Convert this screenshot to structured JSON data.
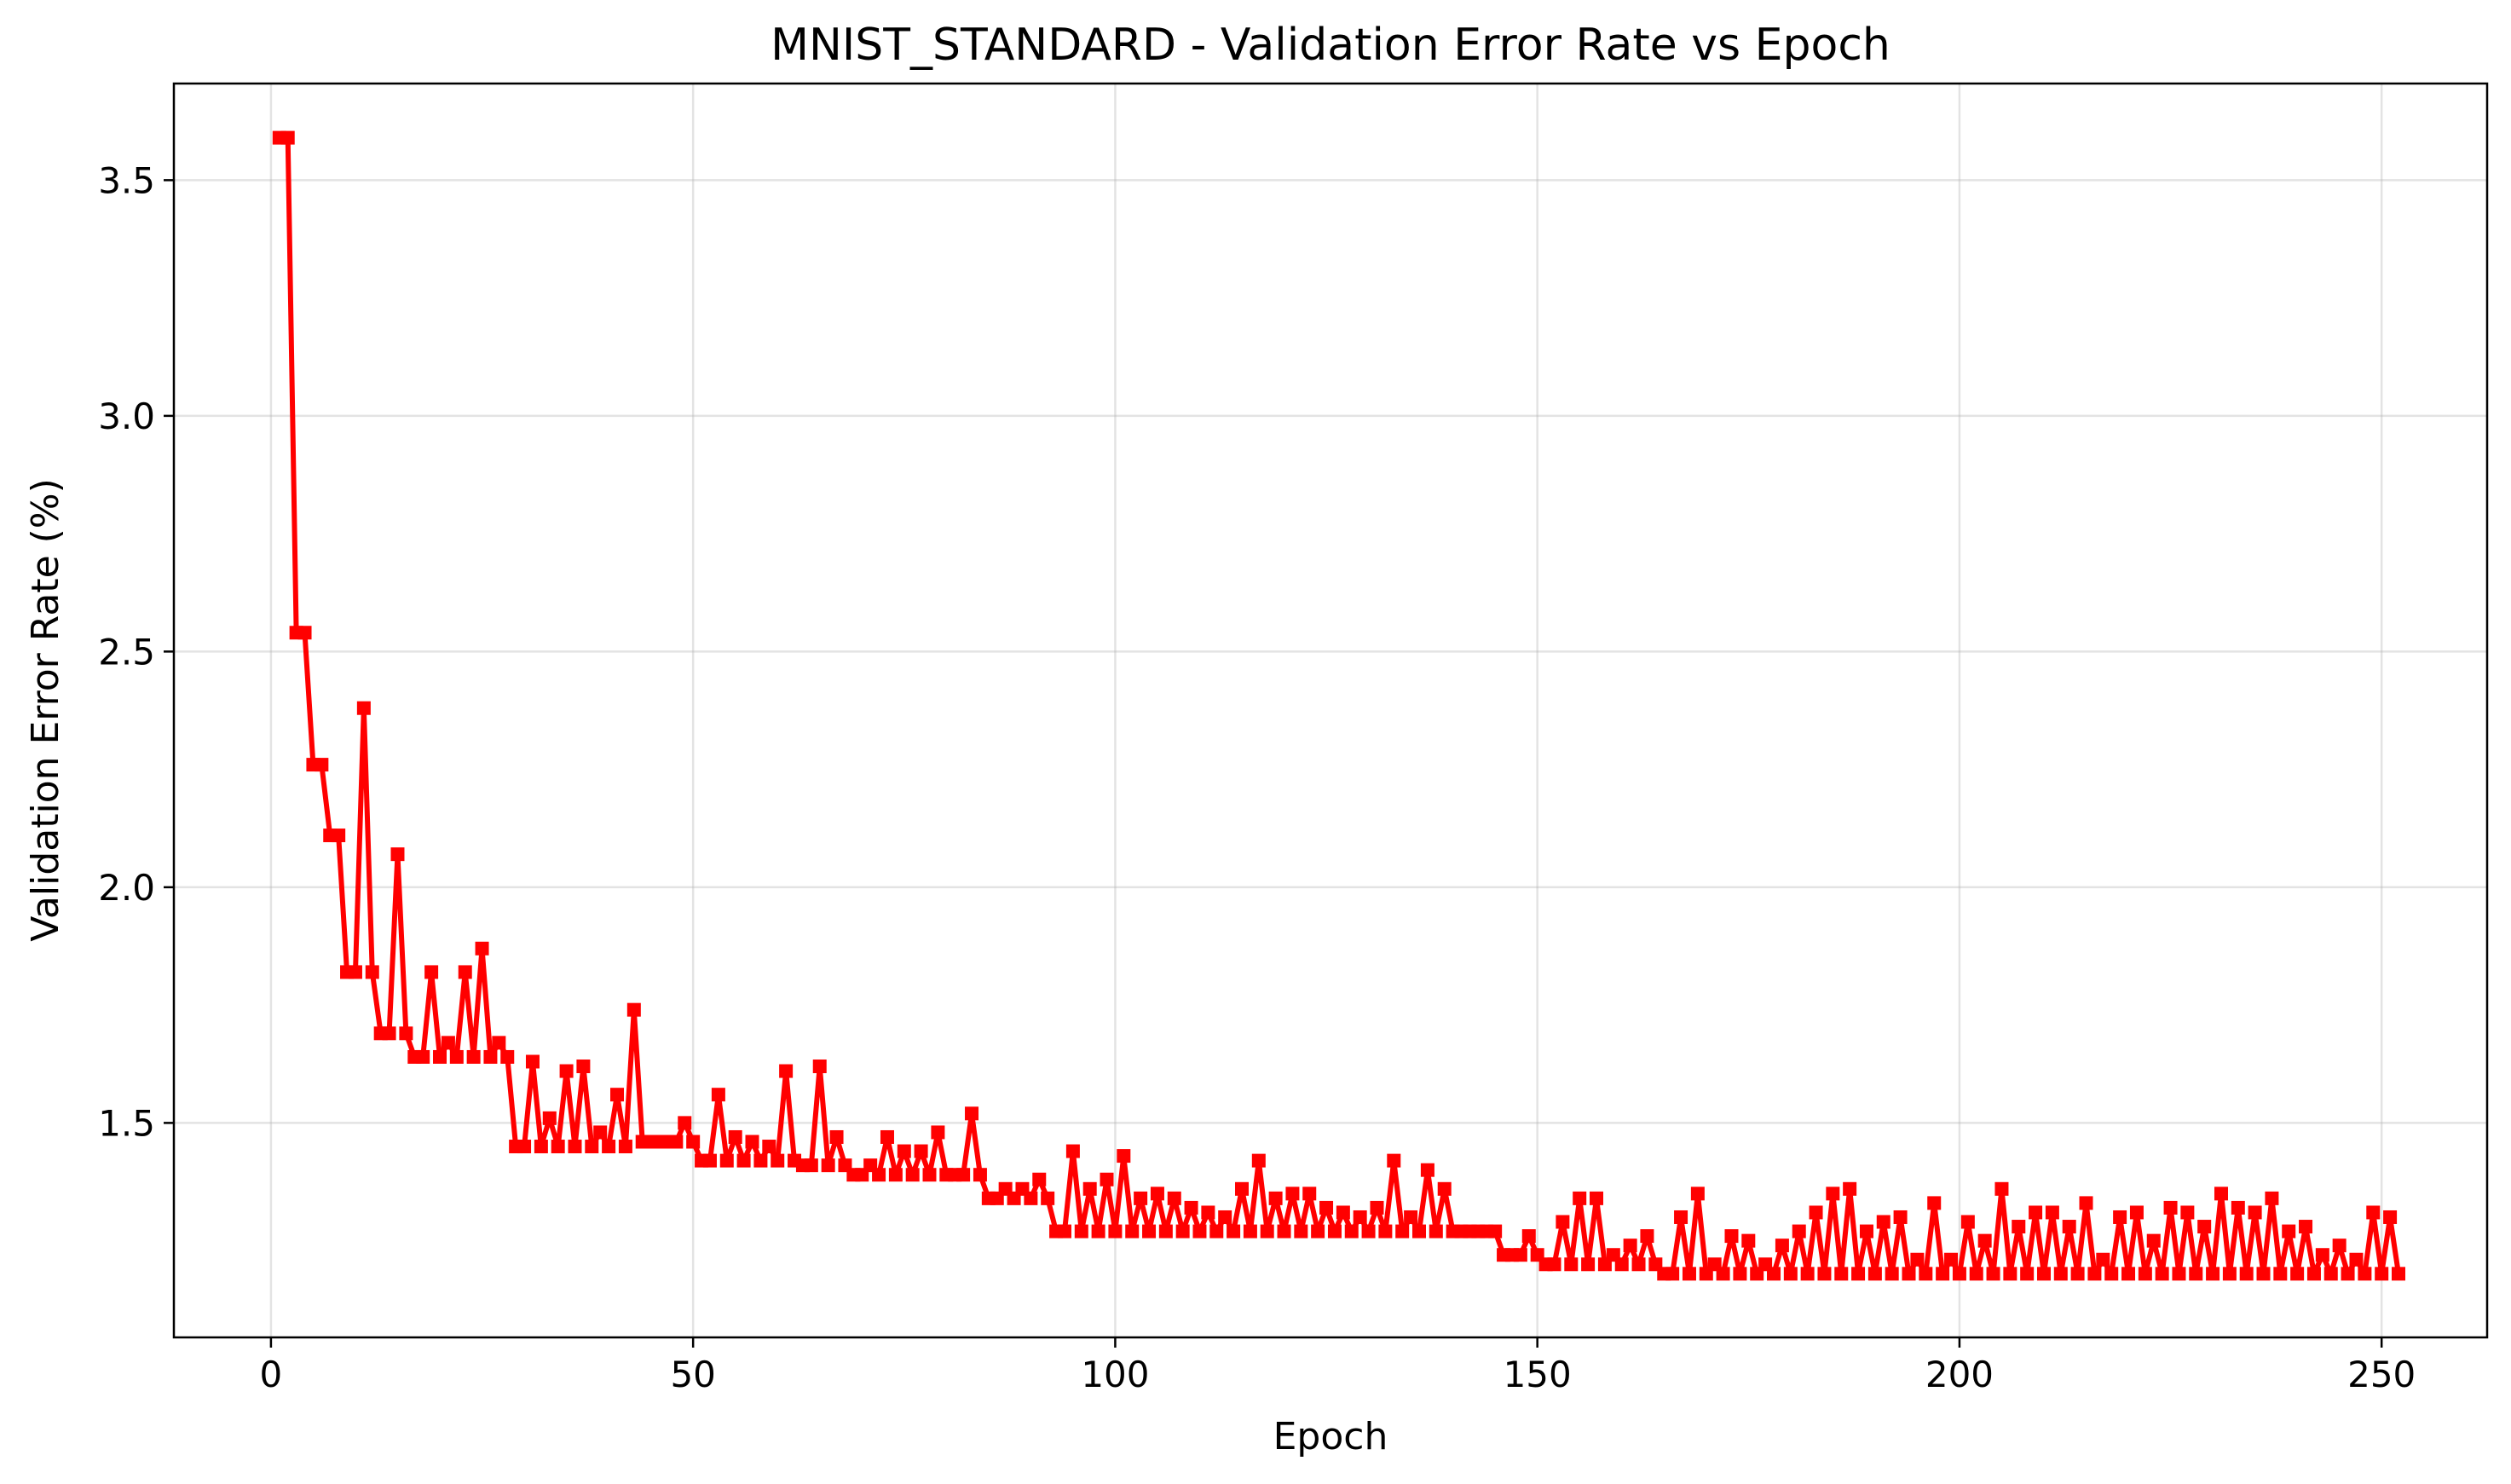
{
  "chart_data": {
    "type": "line",
    "title": "MNIST_STANDARD - Validation Error Rate vs Epoch",
    "xlabel": "Epoch",
    "ylabel": "Validation Error Rate (%)",
    "xlim": [
      -11.5,
      262.5
    ],
    "ylim": [
      1.045,
      3.705
    ],
    "xticks": [
      0,
      50,
      100,
      150,
      200,
      250
    ],
    "yticks": [
      1.5,
      2.0,
      2.5,
      3.0,
      3.5
    ],
    "xtick_labels": [
      "0",
      "50",
      "100",
      "150",
      "200",
      "250"
    ],
    "ytick_labels": [
      "1.5",
      "2.0",
      "2.5",
      "3.0",
      "3.5"
    ],
    "grid": true,
    "series": [
      {
        "color": "#ff0000",
        "marker": "square",
        "x_start": 1,
        "x_step": 1,
        "values": [
          3.59,
          3.59,
          2.54,
          2.54,
          2.26,
          2.26,
          2.11,
          2.11,
          1.82,
          1.82,
          2.38,
          1.82,
          1.69,
          1.69,
          2.07,
          1.69,
          1.64,
          1.64,
          1.82,
          1.64,
          1.67,
          1.64,
          1.82,
          1.64,
          1.87,
          1.64,
          1.67,
          1.64,
          1.45,
          1.45,
          1.63,
          1.45,
          1.51,
          1.45,
          1.61,
          1.45,
          1.62,
          1.45,
          1.48,
          1.45,
          1.56,
          1.45,
          1.74,
          1.46,
          1.46,
          1.46,
          1.46,
          1.46,
          1.5,
          1.46,
          1.42,
          1.42,
          1.56,
          1.42,
          1.47,
          1.42,
          1.46,
          1.42,
          1.45,
          1.42,
          1.61,
          1.42,
          1.41,
          1.41,
          1.62,
          1.41,
          1.47,
          1.41,
          1.39,
          1.39,
          1.41,
          1.39,
          1.47,
          1.39,
          1.44,
          1.39,
          1.44,
          1.39,
          1.48,
          1.39,
          1.39,
          1.39,
          1.52,
          1.39,
          1.34,
          1.34,
          1.36,
          1.34,
          1.36,
          1.34,
          1.38,
          1.34,
          1.27,
          1.27,
          1.44,
          1.27,
          1.36,
          1.27,
          1.38,
          1.27,
          1.43,
          1.27,
          1.34,
          1.27,
          1.35,
          1.27,
          1.34,
          1.27,
          1.32,
          1.27,
          1.31,
          1.27,
          1.3,
          1.27,
          1.36,
          1.27,
          1.42,
          1.27,
          1.34,
          1.27,
          1.35,
          1.27,
          1.35,
          1.27,
          1.32,
          1.27,
          1.31,
          1.27,
          1.3,
          1.27,
          1.32,
          1.27,
          1.42,
          1.27,
          1.3,
          1.27,
          1.4,
          1.27,
          1.36,
          1.27,
          1.27,
          1.27,
          1.27,
          1.27,
          1.27,
          1.22,
          1.22,
          1.22,
          1.26,
          1.22,
          1.2,
          1.2,
          1.29,
          1.2,
          1.34,
          1.2,
          1.34,
          1.2,
          1.22,
          1.2,
          1.24,
          1.2,
          1.26,
          1.2,
          1.18,
          1.18,
          1.3,
          1.18,
          1.35,
          1.18,
          1.2,
          1.18,
          1.26,
          1.18,
          1.25,
          1.18,
          1.2,
          1.18,
          1.24,
          1.18,
          1.27,
          1.18,
          1.31,
          1.18,
          1.35,
          1.18,
          1.36,
          1.18,
          1.27,
          1.18,
          1.29,
          1.18,
          1.3,
          1.18,
          1.21,
          1.18,
          1.33,
          1.18,
          1.21,
          1.18,
          1.29,
          1.18,
          1.25,
          1.18,
          1.36,
          1.18,
          1.28,
          1.18,
          1.31,
          1.18,
          1.31,
          1.18,
          1.28,
          1.18,
          1.33,
          1.18,
          1.21,
          1.18,
          1.3,
          1.18,
          1.31,
          1.18,
          1.25,
          1.18,
          1.32,
          1.18,
          1.31,
          1.18,
          1.28,
          1.18,
          1.35,
          1.18,
          1.32,
          1.18,
          1.31,
          1.18,
          1.34,
          1.18,
          1.27,
          1.18,
          1.28,
          1.18,
          1.22,
          1.18,
          1.24,
          1.18,
          1.21,
          1.18,
          1.31,
          1.18,
          1.3,
          1.18
        ]
      }
    ]
  }
}
